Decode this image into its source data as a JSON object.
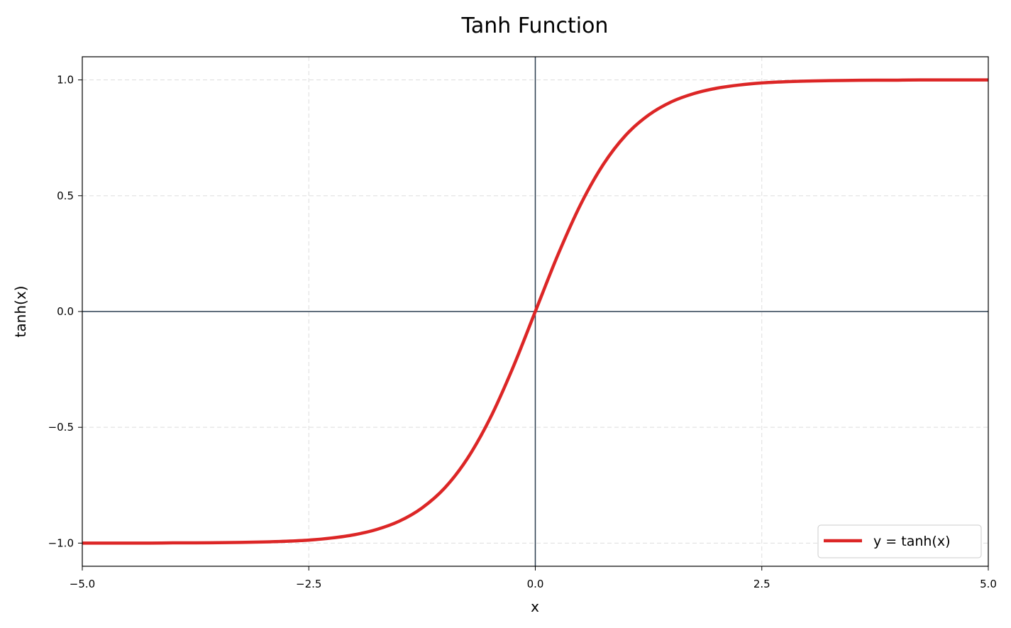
{
  "chart_data": {
    "type": "line",
    "title": "Tanh Function",
    "x_label": "x",
    "y_label": "tanh(x)",
    "x": [
      -5,
      -4.75,
      -4.5,
      -4.25,
      -4,
      -3.75,
      -3.5,
      -3.25,
      -3,
      -2.75,
      -2.5,
      -2.25,
      -2,
      -1.75,
      -1.5,
      -1.25,
      -1,
      -0.75,
      -0.5,
      -0.25,
      0,
      0.25,
      0.5,
      0.75,
      1,
      1.25,
      1.5,
      1.75,
      2,
      2.25,
      2.5,
      2.75,
      3,
      3.25,
      3.5,
      3.75,
      4,
      4.25,
      4.5,
      4.75,
      5
    ],
    "series": [
      {
        "name": "y = tanh(x)",
        "color": "#dc2626",
        "values": [
          -1.0,
          -1.0,
          -1.0,
          -1.0,
          -0.999,
          -0.999,
          -0.998,
          -0.997,
          -0.995,
          -0.992,
          -0.987,
          -0.978,
          -0.964,
          -0.941,
          -0.905,
          -0.848,
          -0.762,
          -0.635,
          -0.462,
          -0.245,
          0,
          0.245,
          0.462,
          0.635,
          0.762,
          0.848,
          0.905,
          0.941,
          0.964,
          0.978,
          0.987,
          0.992,
          0.995,
          0.997,
          0.998,
          0.999,
          0.999,
          1.0,
          1.0,
          1.0,
          1.0
        ]
      }
    ],
    "xlim": [
      -5,
      5
    ],
    "xticks": [
      {
        "value": -5,
        "label": "−5.0"
      },
      {
        "value": -2.5,
        "label": "−2.5"
      },
      {
        "value": 0,
        "label": "0.0"
      },
      2.5,
      {
        "value": 5,
        "label": "5.0"
      }
    ],
    "ylim": [
      -1.1,
      1.1
    ],
    "yticks": [
      {
        "value": -1,
        "label": "−1.0"
      },
      {
        "value": -0.5,
        "label": "−0.5"
      },
      {
        "value": 0,
        "label": "0.0"
      },
      0.5,
      {
        "value": 1,
        "label": "1.0"
      }
    ],
    "grid": true,
    "legend": "lower right"
  }
}
